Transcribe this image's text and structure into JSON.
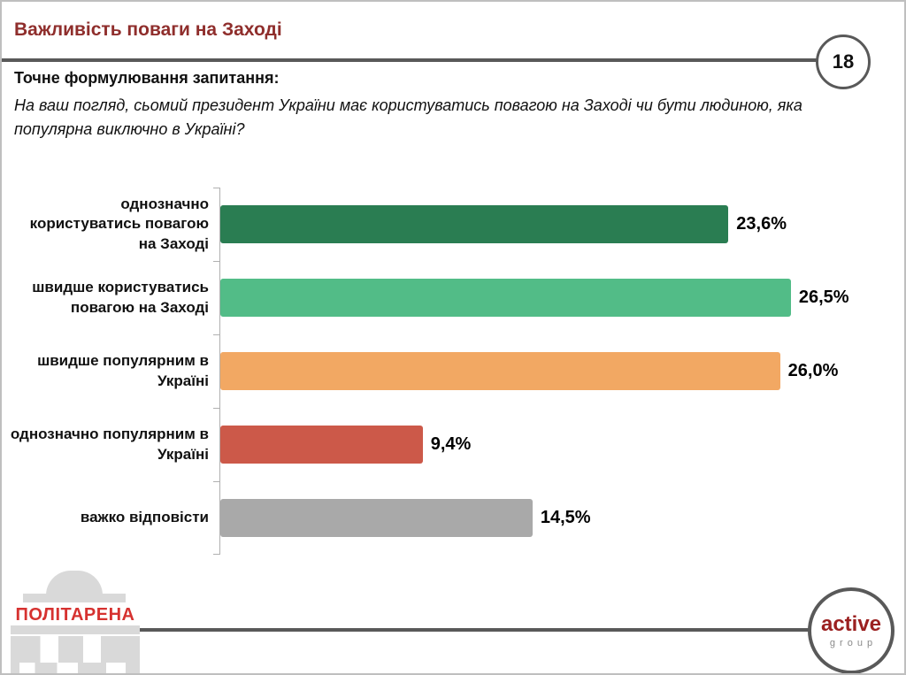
{
  "header": {
    "title": "Важливість поваги на Заході",
    "page_number": "18"
  },
  "question": {
    "label": "Точне формулювання запитання:",
    "text": "На ваш погляд, сьомий президент України має користуватись повагою на Заході чи бути людиною, яка популярна виключно в Україні?"
  },
  "chart_data": {
    "type": "bar",
    "orientation": "horizontal",
    "title": "",
    "xlabel": "",
    "ylabel": "",
    "categories": [
      "однозначно користуватись повагою на Заході",
      "швидше користуватись повагою на Заході",
      "швидше популярним в Україні",
      "однозначно популярним в Україні",
      "важко відповісти"
    ],
    "values": [
      23.6,
      26.5,
      26.0,
      9.4,
      14.5
    ],
    "value_labels": [
      "23,6%",
      "26,5%",
      "26,0%",
      "9,4%",
      "14,5%"
    ],
    "bar_colors": [
      "#2a7d52",
      "#52bc87",
      "#f2a863",
      "#cc5949",
      "#a9a9a9"
    ],
    "xlim": [
      0,
      30
    ],
    "grid": false,
    "legend": false
  },
  "footer": {
    "politarena_text": "ПОЛІТАРЕНА",
    "active_group_line1": "active",
    "active_group_line2": "group"
  },
  "colors": {
    "title_text": "#8f2e2c",
    "divider": "#595959",
    "axis": "#b0b0b0",
    "politarena_red": "#d63230",
    "active_red": "#9b2020",
    "logo_gray": "#d9d9d9"
  }
}
